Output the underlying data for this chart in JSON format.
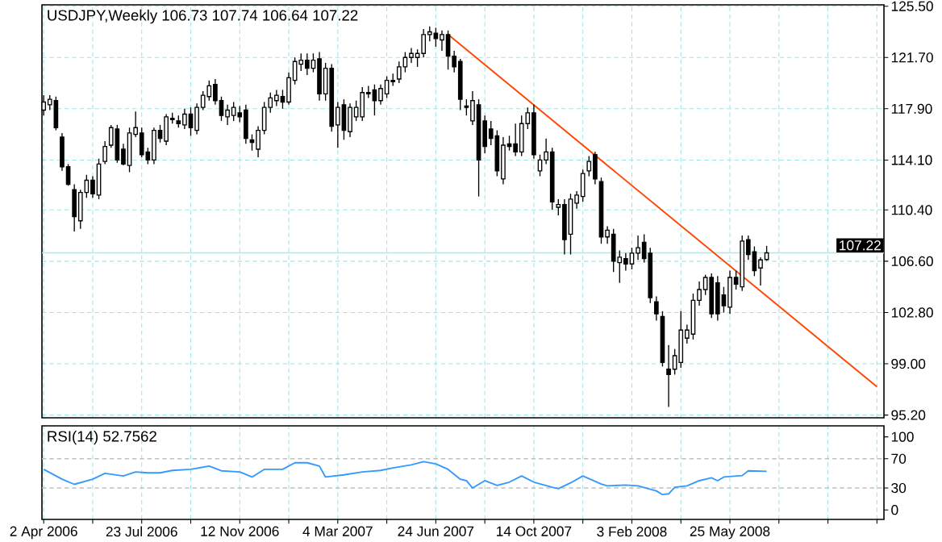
{
  "chart_data": [
    {
      "type": "candlestick",
      "title": "USDJPY,Weekly 106.73 107.74 106.64 107.22",
      "x": [
        "2006-04-02",
        "2006-04-09",
        "2006-04-16",
        "2006-04-23",
        "2006-04-30",
        "2006-05-07",
        "2006-05-14",
        "2006-05-21",
        "2006-05-28",
        "2006-06-04",
        "2006-06-11",
        "2006-06-18",
        "2006-06-25",
        "2006-07-02",
        "2006-07-09",
        "2006-07-16",
        "2006-07-23",
        "2006-07-30",
        "2006-08-06",
        "2006-08-13",
        "2006-08-20",
        "2006-08-27",
        "2006-09-03",
        "2006-09-10",
        "2006-09-17",
        "2006-09-24",
        "2006-10-01",
        "2006-10-08",
        "2006-10-15",
        "2006-10-22",
        "2006-10-29",
        "2006-11-05",
        "2006-11-12",
        "2006-11-19",
        "2006-11-26",
        "2006-12-03",
        "2006-12-10",
        "2006-12-17",
        "2006-12-24",
        "2006-12-31",
        "2007-01-07",
        "2007-01-14",
        "2007-01-21",
        "2007-01-28",
        "2007-02-04",
        "2007-02-11",
        "2007-02-18",
        "2007-02-25",
        "2007-03-04",
        "2007-03-11",
        "2007-03-18",
        "2007-03-25",
        "2007-04-01",
        "2007-04-08",
        "2007-04-15",
        "2007-04-22",
        "2007-04-29",
        "2007-05-06",
        "2007-05-13",
        "2007-05-20",
        "2007-05-27",
        "2007-06-03",
        "2007-06-10",
        "2007-06-17",
        "2007-06-24",
        "2007-07-01",
        "2007-07-08",
        "2007-07-15",
        "2007-07-22",
        "2007-07-29",
        "2007-08-05",
        "2007-08-12",
        "2007-08-19",
        "2007-08-26",
        "2007-09-02",
        "2007-09-09",
        "2007-09-16",
        "2007-09-23",
        "2007-09-30",
        "2007-10-07",
        "2007-10-14",
        "2007-10-21",
        "2007-10-28",
        "2007-11-04",
        "2007-11-11",
        "2007-11-18",
        "2007-11-25",
        "2007-12-02",
        "2007-12-09",
        "2007-12-16",
        "2007-12-23",
        "2007-12-30",
        "2008-01-06",
        "2008-01-13",
        "2008-01-20",
        "2008-01-27",
        "2008-02-03",
        "2008-02-10",
        "2008-02-17",
        "2008-02-24",
        "2008-03-02",
        "2008-03-09",
        "2008-03-16",
        "2008-03-23",
        "2008-03-30",
        "2008-04-06",
        "2008-04-13",
        "2008-04-20",
        "2008-04-27",
        "2008-05-04",
        "2008-05-11",
        "2008-05-18",
        "2008-05-25",
        "2008-06-01",
        "2008-06-08",
        "2008-06-15",
        "2008-06-22",
        "2008-06-29",
        "2008-07-06"
      ],
      "ohlc": [
        [
          117.8,
          118.9,
          117.4,
          118.4
        ],
        [
          118.2,
          118.9,
          117.8,
          118.6
        ],
        [
          118.5,
          118.8,
          116.3,
          116.5
        ],
        [
          115.8,
          116.1,
          113.3,
          113.6
        ],
        [
          113.6,
          113.8,
          112.2,
          112.3
        ],
        [
          111.9,
          112.3,
          108.8,
          109.9
        ],
        [
          109.6,
          111.9,
          109.0,
          111.7
        ],
        [
          111.7,
          113.0,
          111.3,
          112.6
        ],
        [
          112.6,
          112.9,
          111.3,
          111.6
        ],
        [
          111.5,
          114.2,
          111.2,
          113.8
        ],
        [
          114.0,
          115.5,
          113.8,
          115.1
        ],
        [
          115.2,
          116.7,
          115.0,
          116.5
        ],
        [
          116.4,
          116.7,
          113.9,
          114.1
        ],
        [
          114.9,
          115.3,
          113.7,
          113.8
        ],
        [
          113.7,
          116.5,
          113.2,
          116.1
        ],
        [
          116.0,
          117.7,
          115.8,
          116.5
        ],
        [
          116.1,
          116.5,
          114.3,
          114.5
        ],
        [
          114.7,
          115.0,
          113.8,
          114.1
        ],
        [
          114.1,
          116.5,
          113.8,
          116.3
        ],
        [
          116.3,
          116.7,
          115.4,
          115.7
        ],
        [
          115.5,
          117.5,
          115.2,
          117.3
        ],
        [
          117.2,
          117.6,
          116.8,
          117.1
        ],
        [
          117.0,
          117.4,
          116.5,
          116.8
        ],
        [
          116.7,
          117.9,
          116.4,
          117.5
        ],
        [
          117.5,
          118.0,
          115.9,
          116.5
        ],
        [
          116.3,
          118.3,
          116.0,
          118.0
        ],
        [
          118.0,
          119.2,
          117.8,
          118.9
        ],
        [
          118.8,
          120.0,
          118.5,
          119.6
        ],
        [
          119.7,
          120.1,
          118.2,
          118.5
        ],
        [
          118.5,
          118.8,
          117.0,
          117.4
        ],
        [
          117.3,
          118.2,
          116.7,
          117.8
        ],
        [
          117.4,
          118.4,
          117.0,
          118.0
        ],
        [
          117.6,
          118.1,
          116.9,
          117.3
        ],
        [
          117.8,
          118.2,
          115.3,
          115.7
        ],
        [
          115.6,
          116.0,
          114.8,
          115.4
        ],
        [
          114.9,
          116.6,
          114.3,
          116.3
        ],
        [
          116.3,
          118.4,
          116.0,
          118.0
        ],
        [
          118.0,
          119.1,
          117.6,
          118.7
        ],
        [
          118.5,
          119.3,
          118.1,
          118.9
        ],
        [
          118.8,
          119.3,
          117.9,
          118.4
        ],
        [
          118.4,
          120.6,
          118.2,
          120.2
        ],
        [
          120.0,
          121.7,
          119.7,
          121.4
        ],
        [
          121.2,
          122.0,
          120.7,
          121.5
        ],
        [
          121.5,
          122.0,
          120.4,
          120.9
        ],
        [
          120.9,
          122.0,
          120.6,
          121.5
        ],
        [
          121.6,
          122.1,
          118.5,
          119.0
        ],
        [
          119.0,
          121.3,
          118.5,
          120.9
        ],
        [
          120.9,
          121.2,
          116.2,
          116.6
        ],
        [
          116.7,
          118.4,
          115.0,
          118.0
        ],
        [
          118.2,
          118.6,
          115.6,
          116.3
        ],
        [
          116.2,
          118.3,
          115.8,
          118.0
        ],
        [
          117.3,
          118.5,
          117.0,
          118.0
        ],
        [
          117.3,
          119.5,
          117.0,
          119.1
        ],
        [
          119.1,
          119.6,
          118.7,
          119.0
        ],
        [
          119.3,
          119.7,
          117.4,
          118.5
        ],
        [
          118.5,
          119.7,
          118.2,
          119.4
        ],
        [
          119.0,
          120.3,
          118.7,
          120.0
        ],
        [
          120.0,
          120.5,
          119.6,
          119.9
        ],
        [
          120.1,
          121.4,
          119.8,
          121.0
        ],
        [
          121.0,
          122.1,
          120.6,
          121.7
        ],
        [
          121.7,
          122.4,
          121.3,
          122.0
        ],
        [
          121.7,
          122.3,
          121.0,
          122.0
        ],
        [
          122.0,
          123.8,
          121.7,
          123.4
        ],
        [
          123.4,
          124.0,
          122.9,
          123.6
        ],
        [
          123.5,
          123.9,
          122.5,
          123.1
        ],
        [
          123.0,
          123.7,
          122.2,
          123.4
        ],
        [
          123.4,
          123.7,
          120.8,
          121.8
        ],
        [
          121.8,
          122.2,
          120.6,
          121.0
        ],
        [
          121.4,
          121.6,
          117.8,
          118.6
        ],
        [
          118.1,
          118.6,
          117.4,
          118.0
        ],
        [
          117.0,
          119.2,
          116.7,
          118.5
        ],
        [
          118.2,
          118.6,
          111.4,
          114.1
        ],
        [
          117.0,
          117.4,
          114.6,
          115.1
        ],
        [
          116.4,
          117.0,
          115.2,
          115.7
        ],
        [
          115.9,
          116.3,
          112.9,
          113.3
        ],
        [
          112.7,
          115.8,
          112.3,
          115.2
        ],
        [
          115.3,
          115.9,
          114.8,
          115.1
        ],
        [
          115.3,
          116.8,
          114.4,
          114.7
        ],
        [
          114.7,
          117.4,
          114.4,
          116.8
        ],
        [
          116.8,
          118.0,
          116.4,
          117.6
        ],
        [
          117.6,
          118.2,
          114.2,
          114.5
        ],
        [
          113.3,
          114.5,
          112.9,
          114.1
        ],
        [
          114.1,
          115.7,
          113.8,
          114.7
        ],
        [
          114.7,
          115.0,
          110.4,
          111.0
        ],
        [
          110.6,
          111.2,
          110.0,
          110.8
        ],
        [
          110.8,
          111.2,
          107.1,
          108.2
        ],
        [
          108.6,
          111.6,
          107.1,
          111.2
        ],
        [
          110.9,
          111.8,
          110.5,
          111.5
        ],
        [
          111.4,
          113.4,
          111.0,
          113.1
        ],
        [
          113.3,
          114.4,
          112.9,
          114.0
        ],
        [
          114.5,
          114.7,
          112.3,
          112.7
        ],
        [
          112.5,
          112.8,
          107.9,
          108.4
        ],
        [
          108.4,
          109.2,
          107.9,
          108.9
        ],
        [
          108.6,
          109.0,
          105.8,
          106.6
        ],
        [
          106.5,
          107.4,
          105.0,
          106.9
        ],
        [
          106.8,
          107.2,
          105.9,
          106.4
        ],
        [
          106.4,
          107.6,
          106.0,
          107.2
        ],
        [
          107.2,
          108.5,
          106.7,
          107.6
        ],
        [
          108.0,
          108.6,
          106.5,
          106.8
        ],
        [
          107.2,
          107.6,
          103.5,
          103.9
        ],
        [
          103.6,
          104.0,
          102.2,
          102.7
        ],
        [
          102.5,
          102.9,
          98.8,
          99.1
        ],
        [
          98.6,
          100.4,
          95.8,
          98.2
        ],
        [
          98.6,
          100.1,
          98.2,
          99.6
        ],
        [
          99.1,
          102.9,
          98.7,
          101.5
        ],
        [
          100.9,
          101.9,
          100.5,
          101.5
        ],
        [
          101.2,
          104.2,
          100.8,
          103.7
        ],
        [
          103.7,
          105.1,
          103.3,
          104.5
        ],
        [
          104.5,
          105.6,
          104.1,
          105.4
        ],
        [
          105.4,
          105.7,
          102.4,
          102.7
        ],
        [
          105.0,
          105.5,
          102.2,
          102.7
        ],
        [
          104.1,
          104.7,
          102.8,
          103.3
        ],
        [
          103.2,
          105.9,
          102.7,
          105.4
        ],
        [
          105.4,
          105.9,
          104.5,
          104.9
        ],
        [
          104.7,
          108.5,
          104.4,
          108.1
        ],
        [
          108.2,
          108.5,
          106.7,
          107.1
        ],
        [
          107.3,
          107.7,
          105.5,
          105.9
        ],
        [
          106.1,
          106.9,
          104.8,
          106.7
        ],
        [
          106.73,
          107.74,
          106.64,
          107.22
        ]
      ],
      "series": [
        {
          "type": "line",
          "color": "#ff4500",
          "x": [
            "2007-07-08",
            "2008-11-09"
          ],
          "values": [
            123.4,
            97.3
          ]
        }
      ],
      "xlim": [
        "2006-03-31",
        "2008-11-17"
      ],
      "ylim": [
        95.0,
        125.6
      ],
      "xticks": [
        {
          "value": "2006-04-02",
          "label": null
        },
        {
          "value": "2006-05-28",
          "label": null
        },
        {
          "value": "2006-07-23",
          "label": null
        },
        {
          "value": "2006-09-17",
          "label": null
        },
        {
          "value": "2006-11-12",
          "label": null
        },
        {
          "value": "2007-01-07",
          "label": null
        },
        {
          "value": "2007-03-04",
          "label": null
        },
        {
          "value": "2007-04-29",
          "label": null
        },
        {
          "value": "2007-06-24",
          "label": null
        },
        {
          "value": "2007-08-19",
          "label": null
        },
        {
          "value": "2007-10-14",
          "label": null
        },
        {
          "value": "2007-12-09",
          "label": null
        },
        {
          "value": "2008-02-03",
          "label": null
        },
        {
          "value": "2008-03-30",
          "label": null
        },
        {
          "value": "2008-05-25",
          "label": null
        },
        {
          "value": "2008-07-20",
          "label": null
        },
        {
          "value": "2008-09-14",
          "label": null
        },
        {
          "value": "2008-11-09",
          "label": null
        }
      ],
      "yticks": [
        {
          "value": 125.5,
          "label": "125.50"
        },
        {
          "value": 121.7,
          "label": "121.70"
        },
        {
          "value": 117.9,
          "label": "117.90"
        },
        {
          "value": 114.1,
          "label": "114.10"
        },
        {
          "value": 110.4,
          "label": "110.40"
        },
        {
          "value": 106.6,
          "label": "106.60"
        },
        {
          "value": 102.8,
          "label": "102.80"
        },
        {
          "value": 99.0,
          "label": "99.00"
        },
        {
          "value": 95.2,
          "label": "95.20"
        }
      ],
      "grid": true,
      "tick_labels": "y",
      "ref_lines": [
        {
          "axis": "y",
          "value": 107.22,
          "label": "107.22",
          "color": "#a0eeee",
          "line_style": "solid"
        }
      ]
    },
    {
      "type": "line",
      "title": "RSI(14) 52.7562",
      "color": "#3399ff",
      "x": [
        "2006-04-02",
        "2006-04-23",
        "2006-05-07",
        "2006-05-28",
        "2006-06-11",
        "2006-07-02",
        "2006-07-16",
        "2006-07-30",
        "2006-08-13",
        "2006-08-27",
        "2006-09-17",
        "2006-10-08",
        "2006-10-22",
        "2006-11-12",
        "2006-11-26",
        "2006-12-10",
        "2006-12-31",
        "2007-01-14",
        "2007-01-28",
        "2007-02-11",
        "2007-02-18",
        "2007-03-11",
        "2007-04-01",
        "2007-04-22",
        "2007-05-06",
        "2007-05-27",
        "2007-06-10",
        "2007-06-24",
        "2007-07-08",
        "2007-07-22",
        "2007-07-29",
        "2007-08-05",
        "2007-08-19",
        "2007-09-02",
        "2007-09-16",
        "2007-09-30",
        "2007-10-14",
        "2007-11-04",
        "2007-11-11",
        "2007-11-25",
        "2007-12-09",
        "2007-12-30",
        "2008-01-06",
        "2008-01-27",
        "2008-02-10",
        "2008-03-02",
        "2008-03-09",
        "2008-03-16",
        "2008-03-23",
        "2008-04-06",
        "2008-04-20",
        "2008-05-04",
        "2008-05-11",
        "2008-05-18",
        "2008-06-08",
        "2008-06-15",
        "2008-07-06"
      ],
      "values": [
        55.5,
        42,
        35,
        42,
        50,
        46.5,
        52,
        50.7,
        50.7,
        54,
        55.5,
        60,
        53.5,
        52,
        45,
        55.5,
        55.5,
        64.5,
        64.5,
        60,
        45,
        48,
        52,
        54,
        57.5,
        61.7,
        66,
        63,
        55.5,
        42,
        40,
        30,
        40,
        33.5,
        38,
        46.5,
        38,
        31,
        29,
        37,
        46.5,
        35.5,
        33,
        34,
        33,
        26,
        21,
        22,
        31,
        33,
        40,
        44,
        40,
        45,
        47,
        53.5,
        52.8
      ],
      "xlim": [
        "2006-03-31",
        "2008-11-17"
      ],
      "ylim": [
        -13,
        115
      ],
      "xticks": [
        {
          "value": "2006-04-02",
          "label": "2 Apr 2006"
        },
        {
          "value": "2006-05-28",
          "label": null
        },
        {
          "value": "2006-07-23",
          "label": "23 Jul 2006"
        },
        {
          "value": "2006-09-17",
          "label": null
        },
        {
          "value": "2006-11-12",
          "label": "12 Nov 2006"
        },
        {
          "value": "2007-01-07",
          "label": null
        },
        {
          "value": "2007-03-04",
          "label": "4 Mar 2007"
        },
        {
          "value": "2007-04-29",
          "label": null
        },
        {
          "value": "2007-06-24",
          "label": "24 Jun 2007"
        },
        {
          "value": "2007-08-19",
          "label": null
        },
        {
          "value": "2007-10-14",
          "label": "14 Oct 2007"
        },
        {
          "value": "2007-12-09",
          "label": null
        },
        {
          "value": "2008-02-03",
          "label": "3 Feb 2008"
        },
        {
          "value": "2008-03-30",
          "label": null
        },
        {
          "value": "2008-05-25",
          "label": "25 May 2008"
        },
        {
          "value": "2008-07-20",
          "label": null
        },
        {
          "value": "2008-09-14",
          "label": null
        },
        {
          "value": "2008-11-09",
          "label": null
        }
      ],
      "yticks": [
        100,
        70,
        30,
        0
      ],
      "grid": "x",
      "ref_lines": [
        {
          "axis": "y",
          "value": 70,
          "color": "#c0c0c0",
          "line_style": "dashed"
        },
        {
          "axis": "y",
          "value": 30,
          "color": "#c0c0c0",
          "line_style": "dashed"
        }
      ]
    }
  ]
}
